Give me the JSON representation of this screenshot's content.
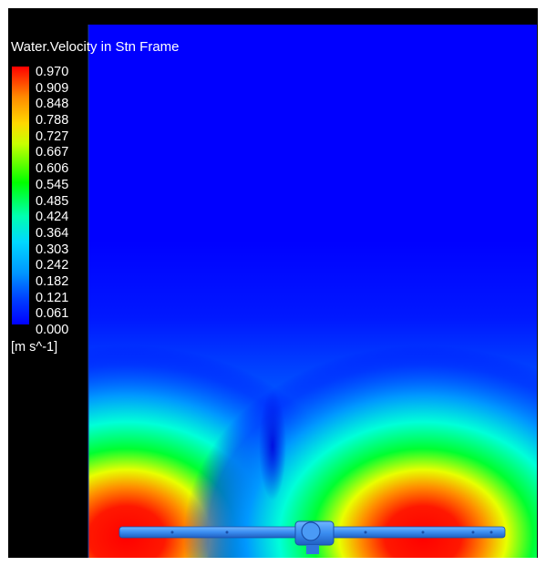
{
  "legend": {
    "title": "Water.Velocity in Stn Frame",
    "values": [
      "0.970",
      "0.909",
      "0.848",
      "0.788",
      "0.727",
      "0.667",
      "0.606",
      "0.545",
      "0.485",
      "0.424",
      "0.364",
      "0.303",
      "0.242",
      "0.182",
      "0.121",
      "0.061",
      "0.000"
    ],
    "units": "[m s^-1]"
  },
  "colors": {
    "background": "#000000",
    "low": "#0000ff",
    "mid": "#00ff00",
    "high": "#ff0000",
    "impeller": "#3a8cf0"
  }
}
